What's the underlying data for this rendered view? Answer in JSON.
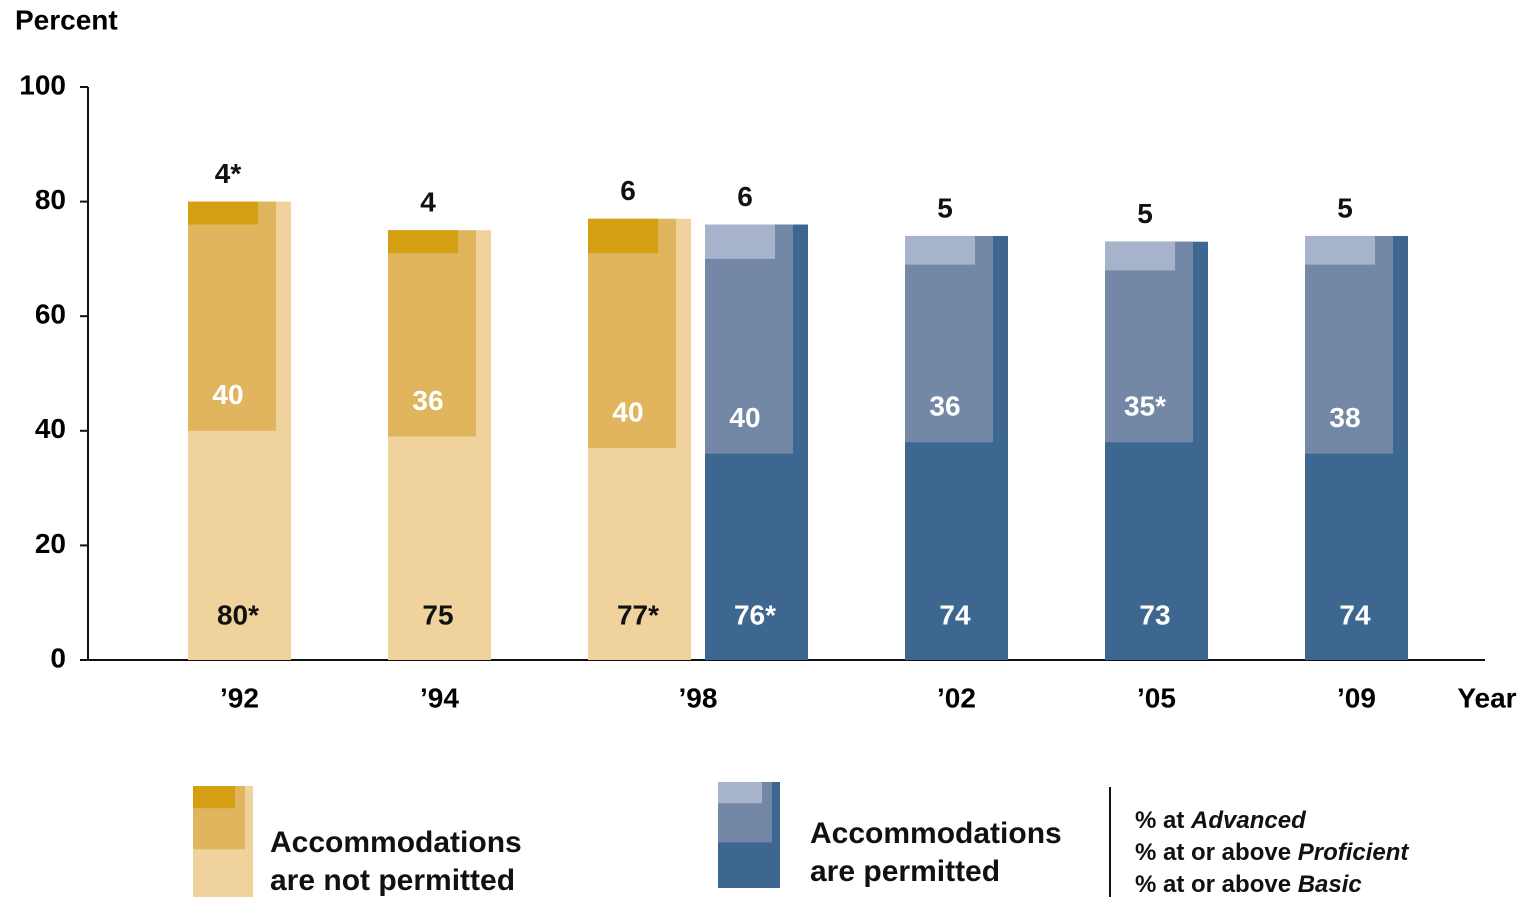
{
  "chart_data": {
    "type": "bar",
    "title": "Percent",
    "x_label": "Year",
    "categories": [
      "’92",
      "’94",
      "’98",
      "’02",
      "’05",
      "’09"
    ],
    "ylim": [
      0,
      100
    ],
    "yticks": [
      0,
      20,
      40,
      60,
      80,
      100
    ],
    "groups": [
      {
        "name": "Accommodations are not permitted",
        "colors": [
          "#efd29c",
          "#e0b55e",
          "#d49f12"
        ],
        "basic": [
          80,
          75,
          77,
          null,
          null,
          null
        ],
        "basic_labels": [
          "80*",
          "75",
          "77*",
          null,
          null,
          null
        ],
        "proficient": [
          40,
          36,
          40,
          null,
          null,
          null
        ],
        "advanced": [
          4,
          4,
          6,
          null,
          null,
          null
        ],
        "advanced_labels": [
          "4*",
          "4",
          "6",
          null,
          null,
          null
        ]
      },
      {
        "name": "Accommodations are permitted",
        "colors": [
          "#3d6790",
          "#7388a7",
          "#a7b3cb"
        ],
        "basic": [
          null,
          null,
          76,
          74,
          73,
          74
        ],
        "basic_labels": [
          null,
          null,
          "76*",
          "74",
          "73",
          "74"
        ],
        "proficient": [
          null,
          null,
          40,
          36,
          35,
          38
        ],
        "proficient_labels": [
          null,
          null,
          "40",
          "36",
          "35*",
          "38"
        ],
        "advanced": [
          null,
          null,
          6,
          5,
          5,
          5
        ]
      }
    ],
    "levels": [
      {
        "prefix": "% at",
        "level": "Advanced"
      },
      {
        "prefix": "% at or above",
        "level": "Proficient"
      },
      {
        "prefix": "% at or above",
        "level": "Basic"
      }
    ]
  }
}
